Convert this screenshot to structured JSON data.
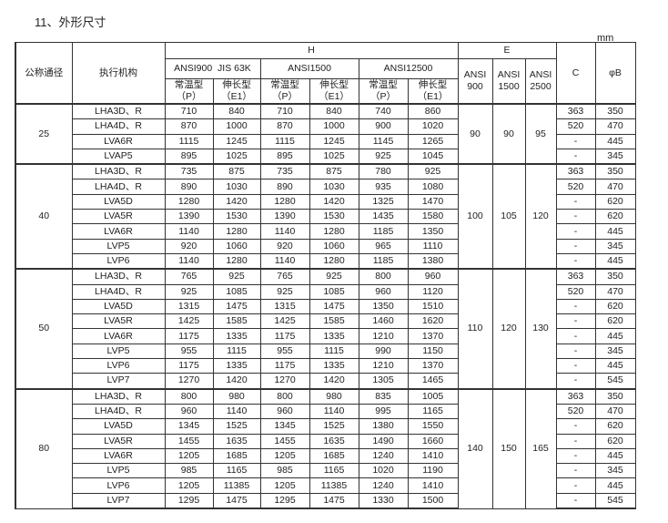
{
  "title": "11、外形尺寸",
  "unit": "mm",
  "header": {
    "nominal": "公称通径",
    "actuator": "执行机构",
    "H": "H",
    "E": "E",
    "C": "C",
    "B": "φB",
    "h_groups": [
      "ANSI900  JIS 63K",
      "ANSI1500",
      "ANSI12500"
    ],
    "e_cols": [
      [
        "ANSI",
        "900"
      ],
      [
        "ANSI",
        "1500"
      ],
      [
        "ANSI",
        "2500"
      ]
    ],
    "sub": [
      [
        "常温型",
        "（P）"
      ],
      [
        "伸长型",
        "（E1）"
      ],
      [
        "常温型",
        "（P）"
      ],
      [
        "伸长型",
        "（E1）"
      ],
      [
        "常温型",
        "（P）"
      ],
      [
        "伸长型",
        "（E1）"
      ]
    ]
  },
  "groups": [
    {
      "size": "25",
      "E": [
        "90",
        "90",
        "95"
      ],
      "rows": [
        [
          "LHA3D、R",
          "710",
          "840",
          "710",
          "840",
          "740",
          "860",
          "363",
          "350"
        ],
        [
          "LHA4D、R",
          "870",
          "1000",
          "870",
          "1000",
          "900",
          "1020",
          "520",
          "470"
        ],
        [
          "LVA6R",
          "1115",
          "1245",
          "1115",
          "1245",
          "1145",
          "1265",
          "-",
          "445"
        ],
        [
          "LVAP5",
          "895",
          "1025",
          "895",
          "1025",
          "925",
          "1045",
          "-",
          "345"
        ]
      ]
    },
    {
      "size": "40",
      "E": [
        "100",
        "105",
        "120"
      ],
      "rows": [
        [
          "LHA3D、R",
          "735",
          "875",
          "735",
          "875",
          "780",
          "925",
          "363",
          "350"
        ],
        [
          "LHA4D、R",
          "890",
          "1030",
          "890",
          "1030",
          "935",
          "1080",
          "520",
          "470"
        ],
        [
          "LVA5D",
          "1280",
          "1420",
          "1280",
          "1420",
          "1325",
          "1470",
          "-",
          "620"
        ],
        [
          "LVA5R",
          "1390",
          "1530",
          "1390",
          "1530",
          "1435",
          "1580",
          "-",
          "620"
        ],
        [
          "LVA6R",
          "1140",
          "1280",
          "1140",
          "1280",
          "1185",
          "1350",
          "-",
          "445"
        ],
        [
          "LVP5",
          "920",
          "1060",
          "920",
          "1060",
          "965",
          "1110",
          "-",
          "345"
        ],
        [
          "LVP6",
          "1140",
          "1280",
          "1140",
          "1280",
          "1185",
          "1380",
          "-",
          "445"
        ]
      ]
    },
    {
      "size": "50",
      "E": [
        "110",
        "120",
        "130"
      ],
      "rows": [
        [
          "LHA3D、R",
          "765",
          "925",
          "765",
          "925",
          "800",
          "960",
          "363",
          "350"
        ],
        [
          "LHA4D、R",
          "925",
          "1085",
          "925",
          "1085",
          "960",
          "1120",
          "520",
          "470"
        ],
        [
          "LVA5D",
          "1315",
          "1475",
          "1315",
          "1475",
          "1350",
          "1510",
          "-",
          "620"
        ],
        [
          "LVA5R",
          "1425",
          "1585",
          "1425",
          "1585",
          "1460",
          "1620",
          "-",
          "620"
        ],
        [
          "LVA6R",
          "1175",
          "1335",
          "1175",
          "1335",
          "1210",
          "1370",
          "-",
          "445"
        ],
        [
          "LVP5",
          "955",
          "1115",
          "955",
          "1115",
          "990",
          "1150",
          "-",
          "345"
        ],
        [
          "LVP6",
          "1175",
          "1335",
          "1175",
          "1335",
          "1210",
          "1370",
          "-",
          "445"
        ],
        [
          "LVP7",
          "1270",
          "1420",
          "1270",
          "1420",
          "1305",
          "1465",
          "-",
          "545"
        ]
      ]
    },
    {
      "size": "80",
      "E": [
        "140",
        "150",
        "165"
      ],
      "rows": [
        [
          "LHA3D、R",
          "800",
          "980",
          "800",
          "980",
          "835",
          "1005",
          "363",
          "350"
        ],
        [
          "LHA4D、R",
          "960",
          "1140",
          "960",
          "1140",
          "995",
          "1165",
          "520",
          "470"
        ],
        [
          "LVA5D",
          "1345",
          "1525",
          "1345",
          "1525",
          "1380",
          "1550",
          "-",
          "620"
        ],
        [
          "LVA5R",
          "1455",
          "1635",
          "1455",
          "1635",
          "1490",
          "1660",
          "-",
          "620"
        ],
        [
          "LVA6R",
          "1205",
          "1685",
          "1205",
          "1685",
          "1240",
          "1410",
          "-",
          "445"
        ],
        [
          "LVP5",
          "985",
          "1165",
          "985",
          "1165",
          "1020",
          "1190",
          "-",
          "345"
        ],
        [
          "LVP6",
          "1205",
          "11385",
          "1205",
          "11385",
          "1240",
          "1410",
          "-",
          "445"
        ],
        [
          "LVP7",
          "1295",
          "1475",
          "1295",
          "1475",
          "1330",
          "1500",
          "-",
          "545"
        ]
      ]
    }
  ]
}
